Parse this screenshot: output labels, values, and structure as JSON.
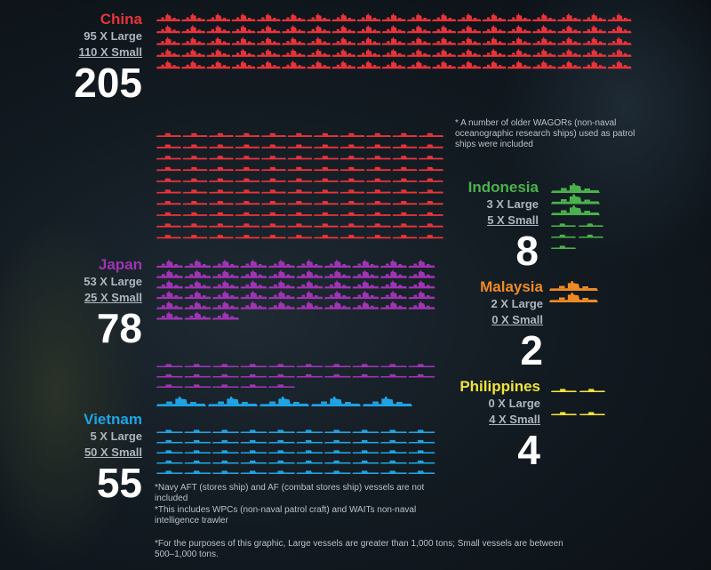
{
  "chart_data": {
    "type": "pictogram",
    "unit": "vessels",
    "series": [
      {
        "name": "China",
        "large": 95,
        "small": 110,
        "total": 205,
        "color": "#e8333a",
        "large_label": "95 X Large",
        "small_label": "110 X Small",
        "total_label": "205"
      },
      {
        "name": "Japan",
        "large": 53,
        "small": 25,
        "total": 78,
        "color": "#a034b4",
        "large_label": "53 X Large",
        "small_label": "25 X Small",
        "total_label": "78"
      },
      {
        "name": "Vietnam",
        "large": 5,
        "small": 50,
        "total": 55,
        "color": "#1fa3e3",
        "large_label": "5 X Large",
        "small_label": "50 X Small",
        "total_label": "55"
      },
      {
        "name": "Indonesia",
        "large": 3,
        "small": 5,
        "total": 8,
        "color": "#4ab24c",
        "large_label": "3 X Large",
        "small_label": "5 X Small",
        "total_label": "8"
      },
      {
        "name": "Malaysia",
        "large": 2,
        "small": 0,
        "total": 2,
        "color": "#f08a24",
        "large_label": "2 X Large",
        "small_label": "0 X Small",
        "total_label": "2"
      },
      {
        "name": "Philippines",
        "large": 0,
        "small": 4,
        "total": 4,
        "color": "#efe33a",
        "large_label": "0 X Large",
        "small_label": "4 X Small",
        "total_label": "4"
      }
    ]
  },
  "notes": {
    "china": "* A number of older WAGORs (non-naval oceanographic research ships) used as patrol ships were included",
    "japan": "*Navy AFT (stores ship) and AF (combat stores ship) vessels are not included",
    "vietnam": "*This includes WPCs (non-naval patrol craft) and WAITs non-naval intelligence trawler",
    "definition": "*For the purposes of this graphic, Large vessels are greater than 1,000 tons; Small vessels are between 500–1,000 tons."
  }
}
